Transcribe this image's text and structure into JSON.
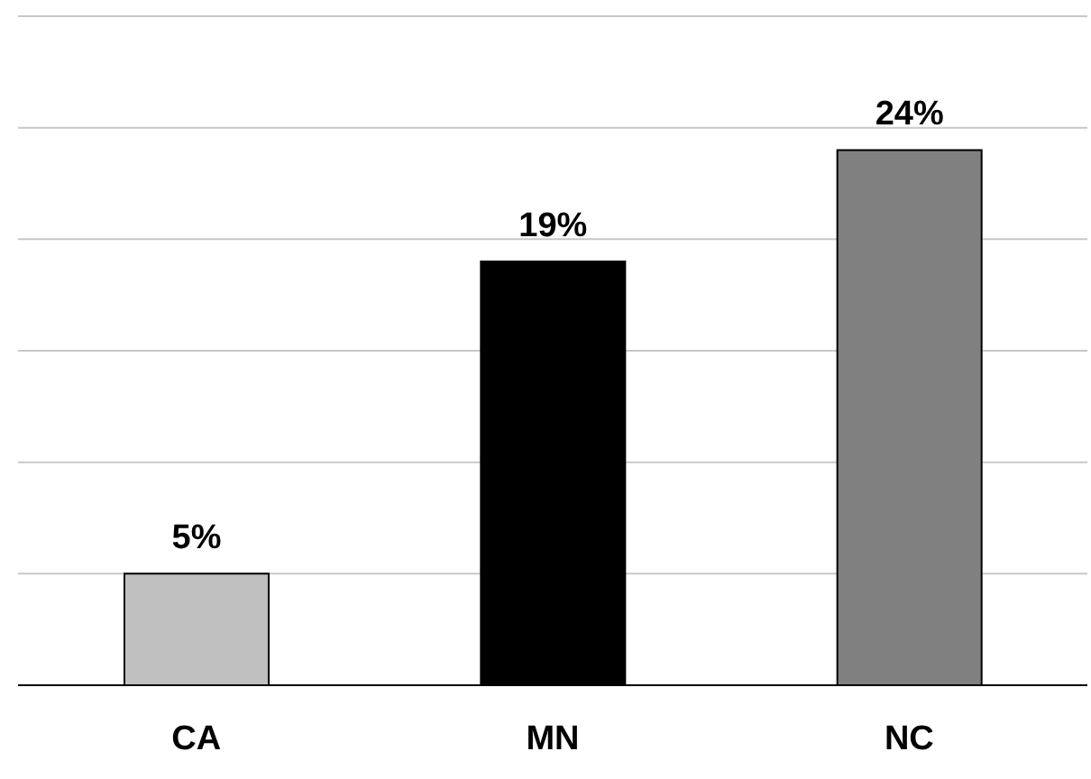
{
  "chart_data": {
    "type": "bar",
    "categories": [
      "CA",
      "MN",
      "NC"
    ],
    "values": [
      5,
      19,
      24
    ],
    "colors": [
      "#c0c0c0",
      "#000000",
      "#808080"
    ],
    "value_labels": [
      "5%",
      "19%",
      "24%"
    ],
    "ylim": [
      0,
      30
    ],
    "yticks": [
      {
        "value": 0,
        "label": null
      },
      {
        "value": 5,
        "label": null
      },
      {
        "value": 10,
        "label": null
      },
      {
        "value": 15,
        "label": null
      },
      {
        "value": 20,
        "label": null
      },
      {
        "value": 25,
        "label": null
      },
      {
        "value": 30,
        "label": null
      }
    ],
    "grid": "y",
    "tick_labels": "x"
  }
}
